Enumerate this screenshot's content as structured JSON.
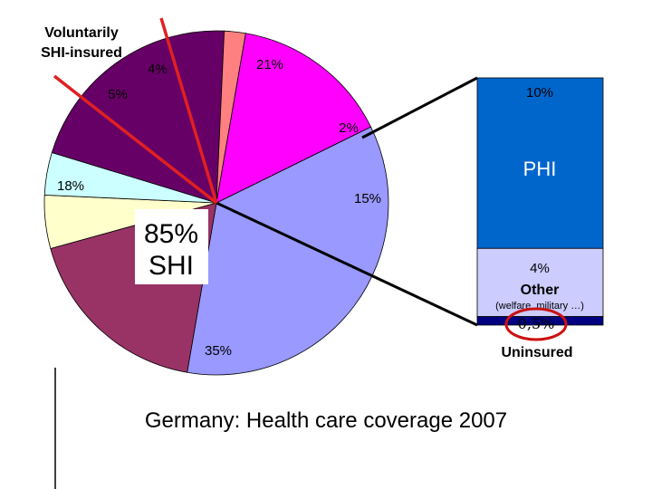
{
  "chart_data": {
    "type": "pie",
    "title": "Germany: Health care coverage 2007",
    "slices": [
      {
        "label": "35%",
        "value": 35,
        "color": "#9999ff"
      },
      {
        "label": "18%",
        "value": 18,
        "color": "#993366"
      },
      {
        "label": "5%",
        "value": 5,
        "color": "#ffffcc"
      },
      {
        "label": "4%",
        "value": 4,
        "color": "#ccffff"
      },
      {
        "label": "21%",
        "value": 21,
        "color": "#660066"
      },
      {
        "label": "2%",
        "value": 2,
        "color": "#ff8080"
      },
      {
        "label": "15%",
        "value": 15,
        "color": "#ff00ff"
      }
    ],
    "bar": {
      "segments": [
        {
          "label": "10%",
          "value": 10,
          "color": "#0066cc",
          "text": "PHI"
        },
        {
          "label": "4%",
          "value": 4,
          "color": "#ccccff",
          "text": "Other",
          "subtext": "(welfare, military …)"
        },
        {
          "label": "0,5%",
          "value": 0.5,
          "color": "#000080",
          "text": "Uninsured"
        }
      ]
    },
    "annotations": {
      "shi_total": "85%",
      "shi_label": "SHI",
      "voluntary_line1": "Voluntarily",
      "voluntary_line2": "SHI-insured"
    }
  },
  "colors": {
    "separator_lines": "#e02020",
    "connector_lines": "#000000",
    "highlight_ellipse": "#cc1111"
  }
}
